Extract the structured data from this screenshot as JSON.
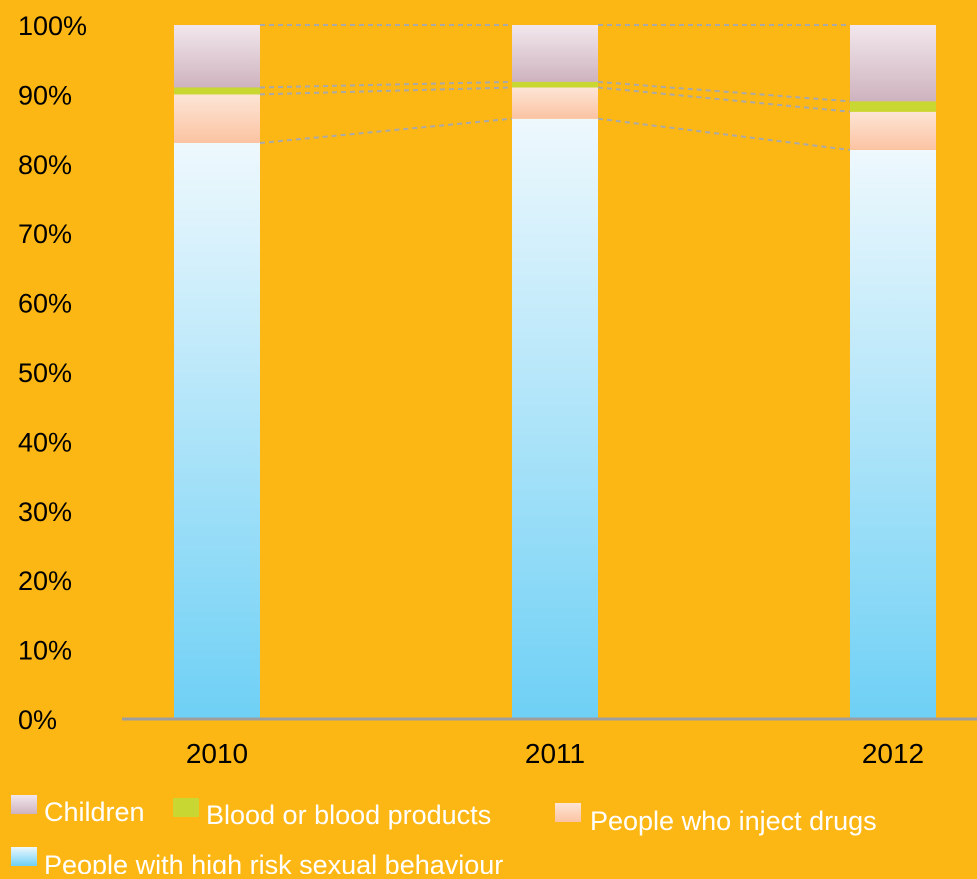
{
  "colors": {
    "background": "#FDB714",
    "high_risk_sexual": [
      "#6ED0F5",
      "#EEF8FD"
    ],
    "inject_drugs": [
      "#FBC3A2",
      "#FDE5D6"
    ],
    "blood_products": "#C8D732",
    "children": [
      "#CEB3BF",
      "#F2E7EC"
    ],
    "connector_lines": "#A9A9A9",
    "axis": "#9E9E9E"
  },
  "chart_data": {
    "type": "bar",
    "stacked": true,
    "categories": [
      "2010",
      "2011",
      "2012"
    ],
    "series": [
      {
        "name": "People with high risk sexual behaviour",
        "values": [
          83,
          86.5,
          82
        ],
        "color_key": "high_risk_sexual"
      },
      {
        "name": "People who inject drugs",
        "values": [
          7,
          4.5,
          5.5
        ],
        "color_key": "inject_drugs"
      },
      {
        "name": "Blood or blood products",
        "values": [
          1,
          0.8,
          1.5
        ],
        "color_key": "blood_products"
      },
      {
        "name": "Children",
        "values": [
          9,
          8.2,
          11
        ],
        "color_key": "children"
      }
    ],
    "y_ticks": [
      "0%",
      "10%",
      "20%",
      "30%",
      "40%",
      "50%",
      "60%",
      "70%",
      "80%",
      "90%",
      "100%"
    ],
    "ylim": [
      0,
      100
    ],
    "title": "",
    "xlabel": "",
    "ylabel": "",
    "grid": false,
    "connector_lines": true,
    "legend": {
      "position": "bottom",
      "entries": [
        "Children",
        "Blood or blood products",
        "People who inject drugs",
        "People with high risk sexual behaviour"
      ]
    }
  }
}
